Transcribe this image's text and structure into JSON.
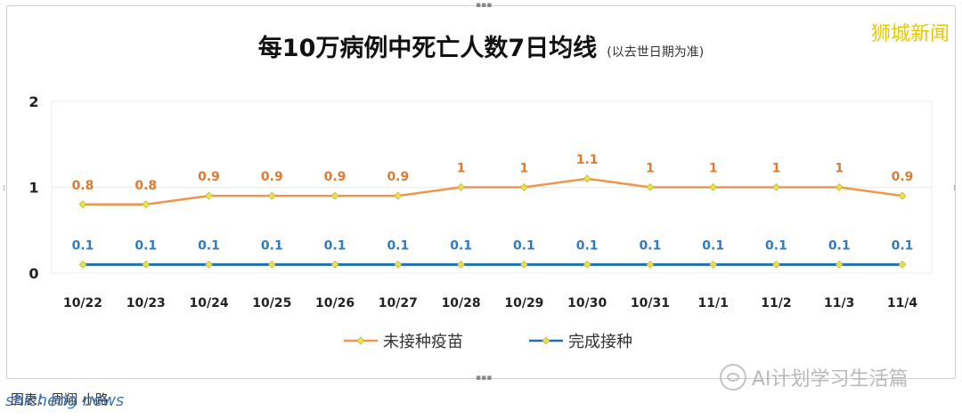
{
  "watermark": "狮城新闻",
  "chart_data": {
    "type": "line",
    "title": "每10万病例中死亡人数7日均线",
    "subtitle": "(以去世日期为准)",
    "categories": [
      "10/22",
      "10/23",
      "10/24",
      "10/25",
      "10/26",
      "10/27",
      "10/28",
      "10/29",
      "10/30",
      "10/31",
      "11/1",
      "11/2",
      "11/3",
      "11/4"
    ],
    "yticks": [
      "0",
      "1",
      "2"
    ],
    "ylim": [
      0,
      2
    ],
    "grid": true,
    "legend_position": "bottom",
    "series": [
      {
        "name": "未接种疫苗",
        "color": "#f0964b",
        "values": [
          0.8,
          0.8,
          0.9,
          0.9,
          0.9,
          0.9,
          1,
          1,
          1.1,
          1,
          1,
          1,
          1,
          0.9
        ],
        "labels": [
          "0.8",
          "0.8",
          "0.9",
          "0.9",
          "0.9",
          "0.9",
          "1",
          "1",
          "1.1",
          "1",
          "1",
          "1",
          "1",
          "0.9"
        ],
        "label_color": "#e07a2e"
      },
      {
        "name": "完成接种",
        "color": "#1f6fb5",
        "values": [
          0.1,
          0.1,
          0.1,
          0.1,
          0.1,
          0.1,
          0.1,
          0.1,
          0.1,
          0.1,
          0.1,
          0.1,
          0.1,
          0.1
        ],
        "labels": [
          "0.1",
          "0.1",
          "0.1",
          "0.1",
          "0.1",
          "0.1",
          "0.1",
          "0.1",
          "0.1",
          "0.1",
          "0.1",
          "0.1",
          "0.1",
          "0.1"
        ],
        "label_color": "#2e7bc0"
      }
    ],
    "marker_color": "#e8e14a"
  },
  "credit": "图表：周翔 小路",
  "credit_overlay": "shicheng news",
  "brand": "AI计划学习生活篇"
}
